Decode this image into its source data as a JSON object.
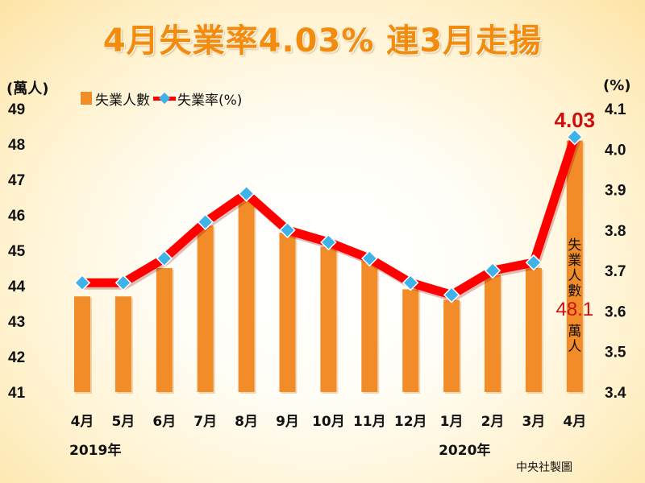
{
  "title": "4月失業率4.03% 連3月走揚",
  "source": "中央社製圖",
  "chart_data": {
    "type": "bar",
    "categories": [
      "4月",
      "5月",
      "6月",
      "7月",
      "8月",
      "9月",
      "10月",
      "11月",
      "12月",
      "1月",
      "2月",
      "3月",
      "4月"
    ],
    "year_labels": [
      {
        "text": "2019年",
        "category_index": 0
      },
      {
        "text": "2020年",
        "category_index": 9
      }
    ],
    "left_axis": {
      "unit": "(萬人)",
      "ylim": [
        41,
        49
      ],
      "ticks": [
        41,
        42,
        43,
        44,
        45,
        46,
        47,
        48,
        49
      ]
    },
    "right_axis": {
      "unit": "(%)",
      "ylim": [
        3.4,
        4.1
      ],
      "ticks": [
        "3.4",
        "3.5",
        "3.6",
        "3.7",
        "3.8",
        "3.9",
        "4.0",
        "4.1"
      ]
    },
    "series": [
      {
        "name": "失業人數",
        "type": "bar",
        "axis": "left",
        "color": "#f28c28",
        "values": [
          43.7,
          43.7,
          44.5,
          45.7,
          46.5,
          45.5,
          45.1,
          44.7,
          43.9,
          43.6,
          44.3,
          44.5,
          48.1
        ]
      },
      {
        "name": "失業率(%)",
        "type": "line",
        "axis": "right",
        "color": "#ff0000",
        "marker_color": "#3fb3e8",
        "values": [
          3.67,
          3.67,
          3.73,
          3.82,
          3.89,
          3.8,
          3.77,
          3.73,
          3.67,
          3.64,
          3.7,
          3.72,
          4.03
        ]
      }
    ],
    "annotations": {
      "peak_rate": "4.03",
      "bar_note_chars": [
        "失",
        "業",
        "人",
        "數"
      ],
      "bar_value": "48.1",
      "bar_unit": "萬人"
    },
    "grid": false,
    "legend_position": "top-left"
  }
}
